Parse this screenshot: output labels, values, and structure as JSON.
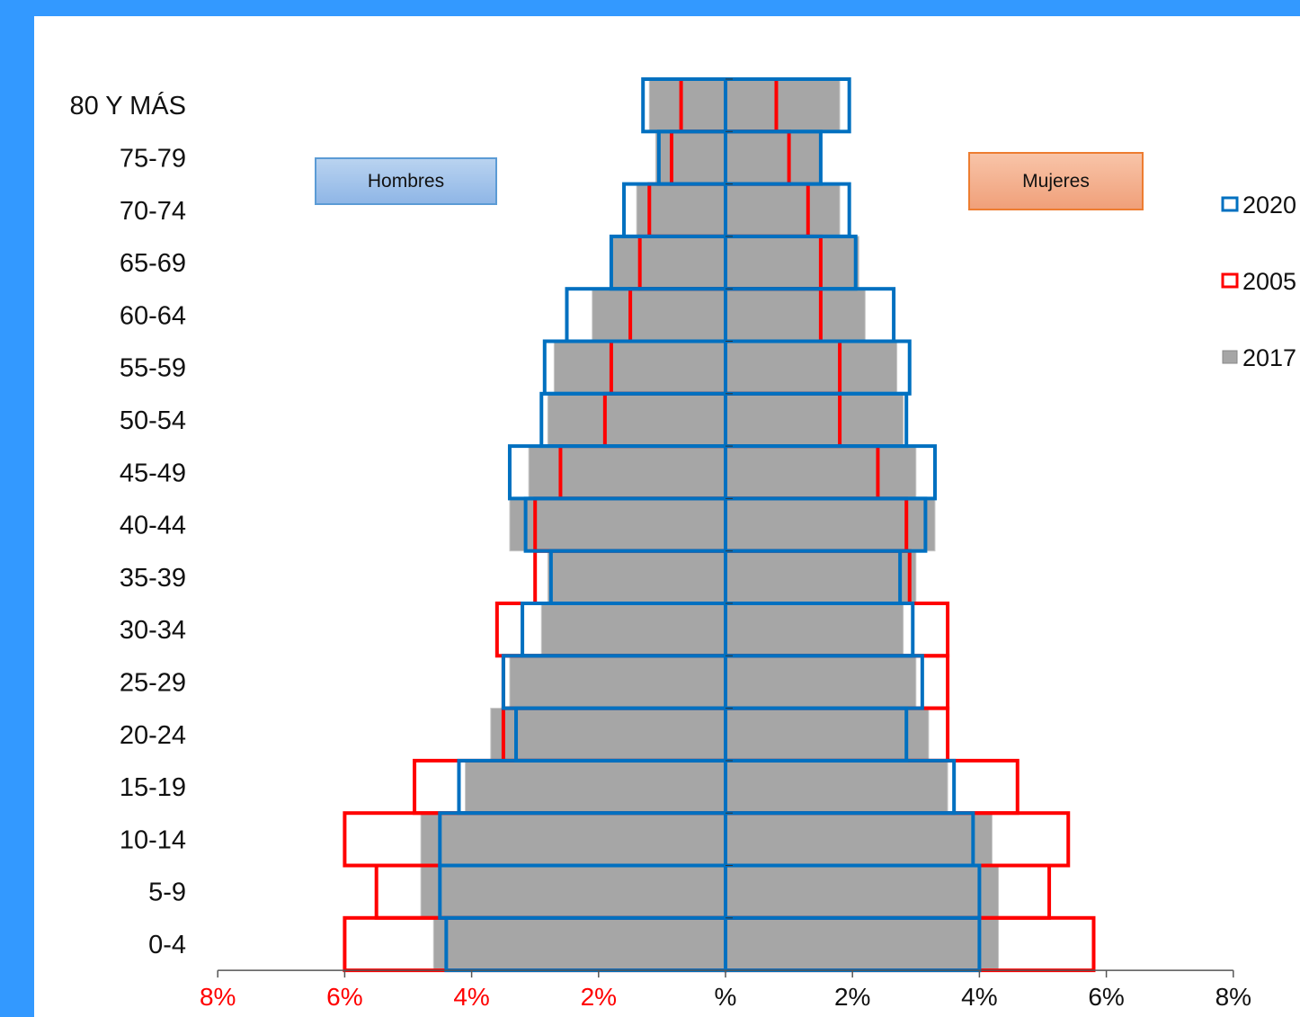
{
  "chart_data": {
    "type": "bar",
    "title": "",
    "xlabel": "",
    "ylabel": "",
    "categories": [
      "0-4",
      "5-9",
      "10-14",
      "15-19",
      "20-24",
      "25-29",
      "30-34",
      "35-39",
      "40-44",
      "45-49",
      "50-54",
      "55-59",
      "60-64",
      "65-69",
      "70-74",
      "75-79",
      "80 Y MÁS"
    ],
    "groups": {
      "left": "Hombres",
      "right": "Mujeres"
    },
    "xlim": [
      -8,
      8
    ],
    "x_ticks": [
      {
        "value": -8,
        "label": "8%"
      },
      {
        "value": -6,
        "label": "6%"
      },
      {
        "value": -4,
        "label": "4%"
      },
      {
        "value": -2,
        "label": "2%"
      },
      {
        "value": 0,
        "label": "%"
      },
      {
        "value": 2,
        "label": "2%"
      },
      {
        "value": 4,
        "label": "4%"
      },
      {
        "value": 6,
        "label": "6%"
      },
      {
        "value": 8,
        "label": "8%"
      }
    ],
    "tick_colors": {
      "left": "#ff0000",
      "right": "#111111"
    },
    "legend": {
      "position": "right"
    },
    "series": [
      {
        "name": "2017",
        "style": "fill",
        "color": "#a6a6a6",
        "hombres": [
          4.6,
          4.8,
          4.8,
          4.1,
          3.7,
          3.4,
          2.9,
          2.8,
          3.4,
          3.1,
          2.8,
          2.7,
          2.1,
          1.8,
          1.4,
          1.1,
          1.2
        ],
        "mujeres": [
          4.3,
          4.3,
          4.2,
          3.5,
          3.2,
          3.0,
          2.8,
          3.0,
          3.3,
          3.0,
          2.8,
          2.7,
          2.2,
          2.1,
          1.8,
          1.5,
          1.8
        ]
      },
      {
        "name": "2005",
        "style": "outline",
        "color": "#ff0000",
        "hombres": [
          6.0,
          5.5,
          6.0,
          4.9,
          3.5,
          3.5,
          3.6,
          3.0,
          3.0,
          2.6,
          1.9,
          1.8,
          1.5,
          1.35,
          1.2,
          0.85,
          0.7
        ],
        "mujeres": [
          5.8,
          5.1,
          5.4,
          4.6,
          3.5,
          3.5,
          3.5,
          2.9,
          2.85,
          2.4,
          1.8,
          1.8,
          1.5,
          1.5,
          1.3,
          1.0,
          0.8
        ]
      },
      {
        "name": "2020",
        "style": "outline",
        "color": "#0070c0",
        "hombres": [
          4.4,
          4.5,
          4.5,
          4.2,
          3.3,
          3.5,
          3.2,
          2.75,
          3.15,
          3.4,
          2.9,
          2.85,
          2.5,
          1.8,
          1.6,
          1.05,
          1.3
        ],
        "mujeres": [
          4.0,
          4.0,
          3.9,
          3.6,
          2.85,
          3.1,
          2.95,
          2.75,
          3.15,
          3.3,
          2.85,
          2.9,
          2.65,
          2.05,
          1.95,
          1.5,
          1.95
        ]
      }
    ]
  },
  "labels": {
    "hombres": "Hombres",
    "mujeres": "Mujeres"
  },
  "legend_items": [
    "2020",
    "2005",
    "2017"
  ]
}
